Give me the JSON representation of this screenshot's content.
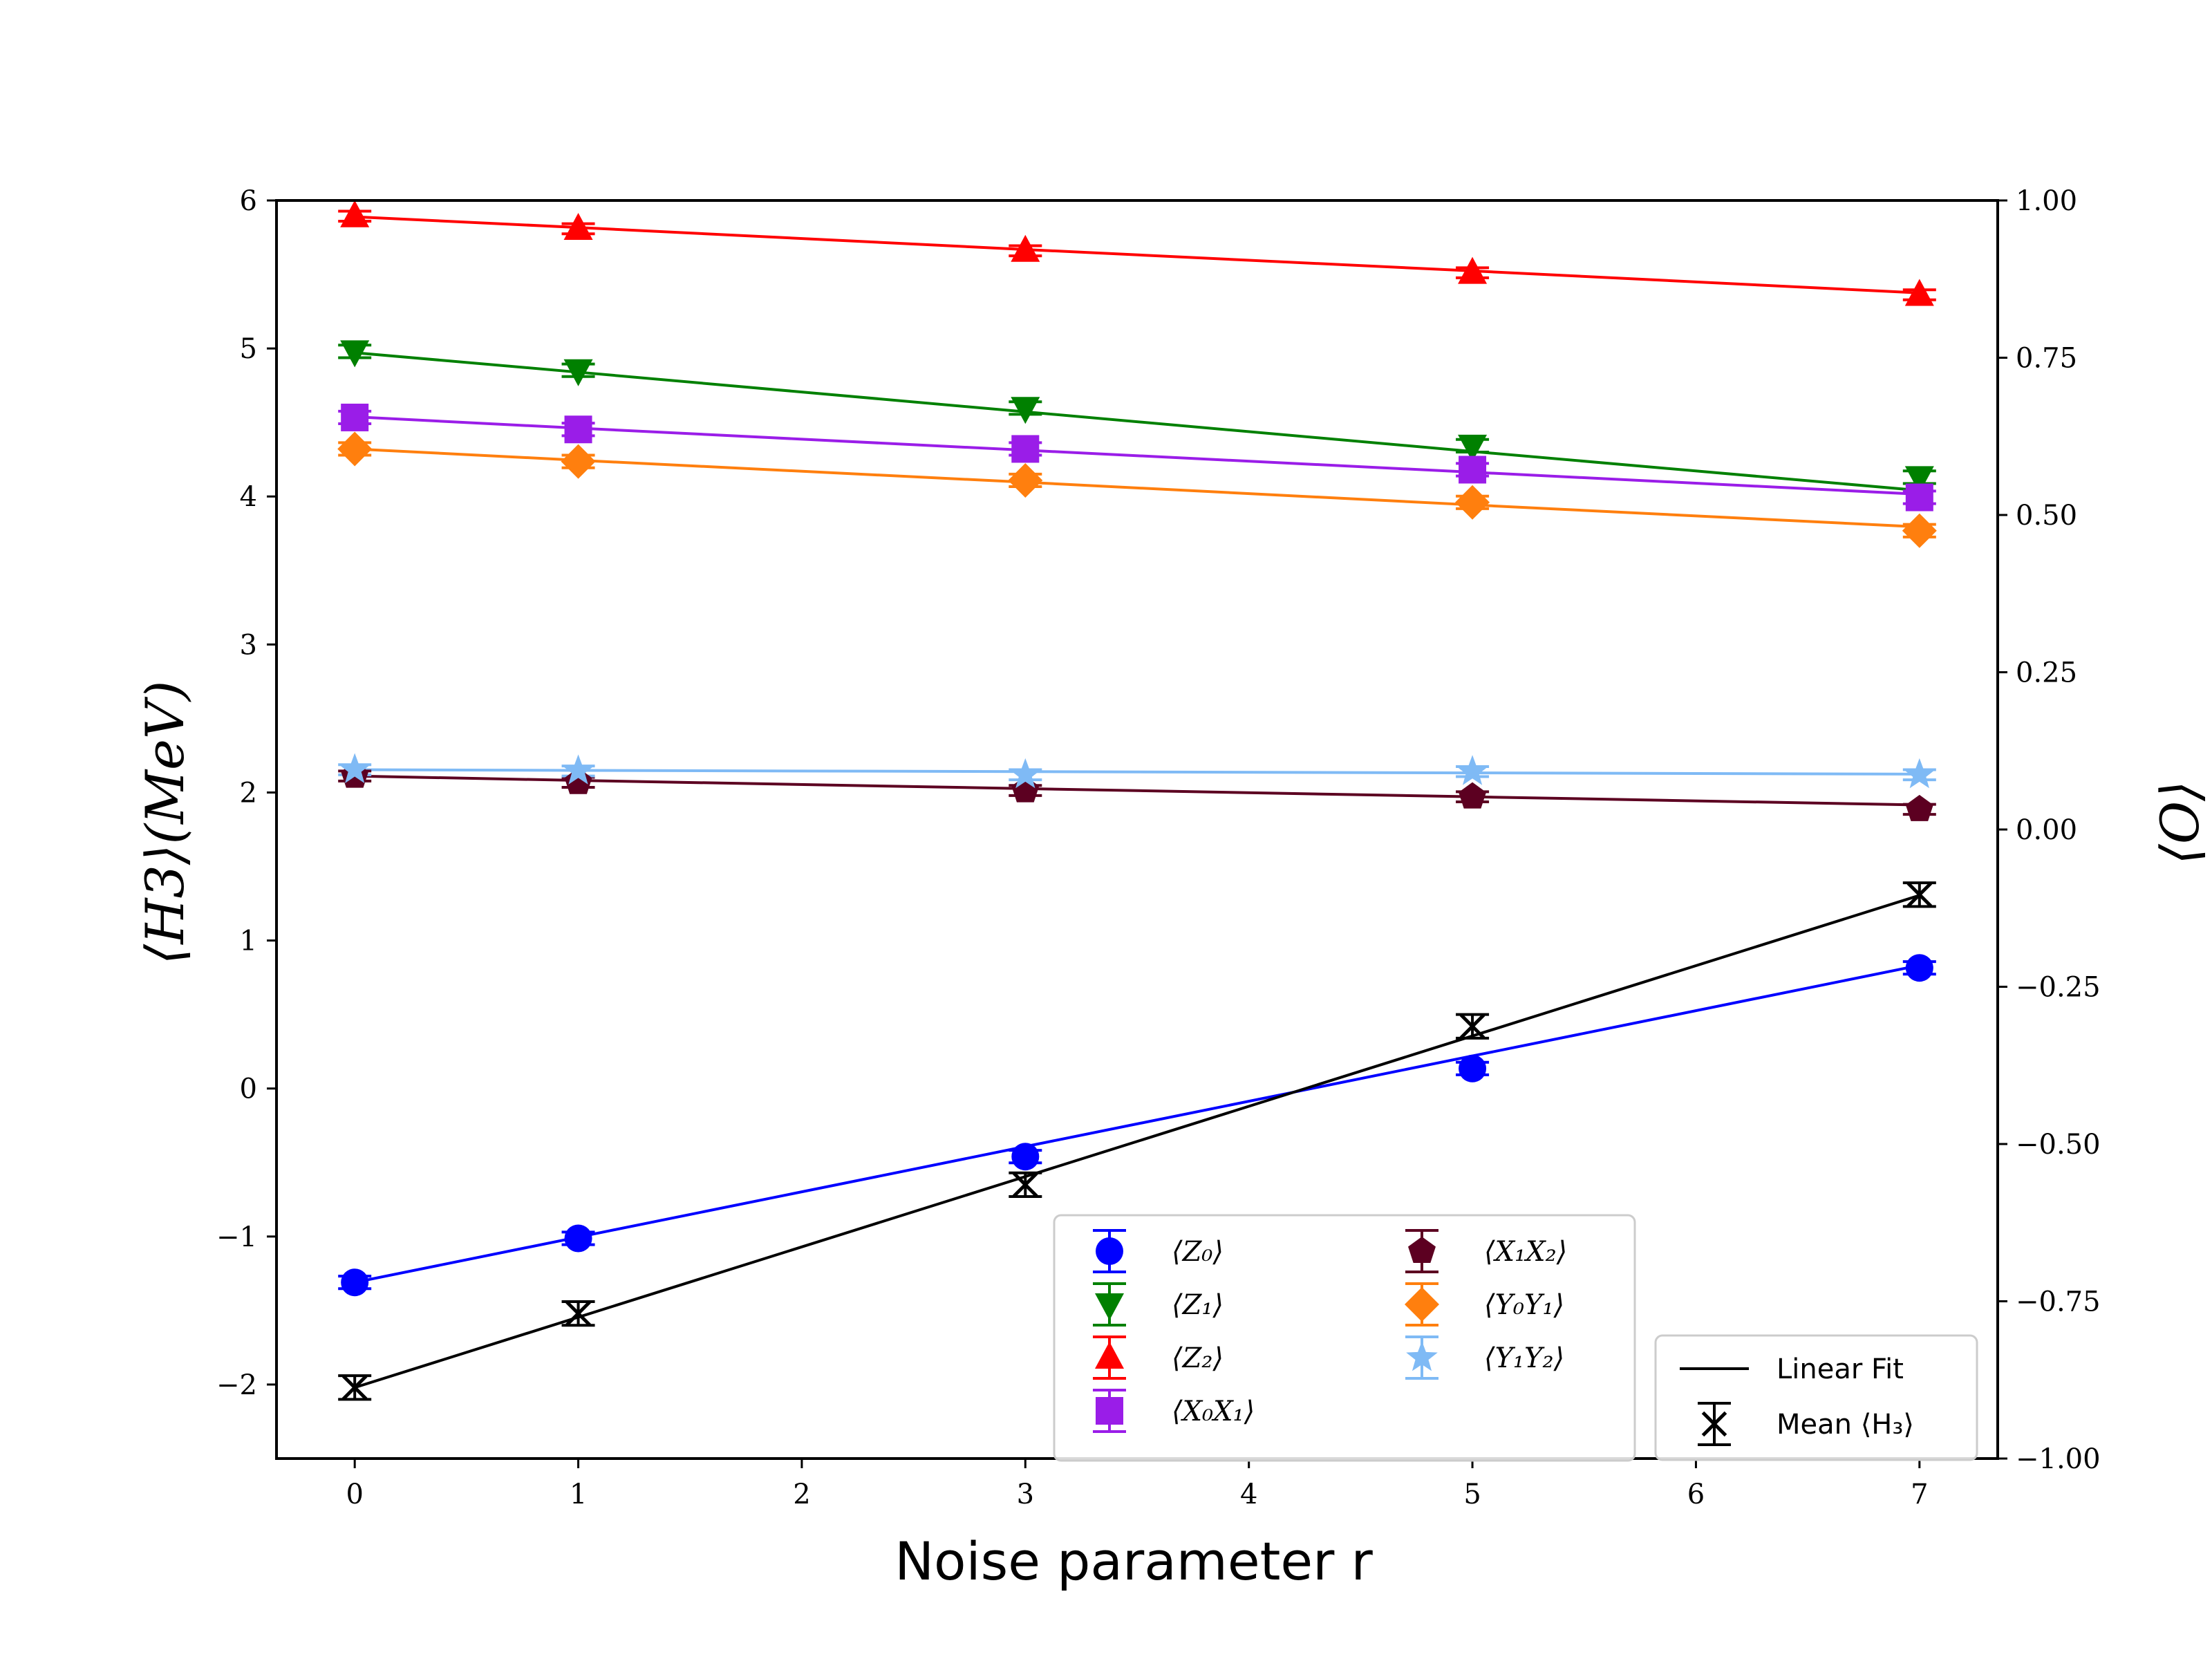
{
  "chart_data": {
    "type": "scatter",
    "x": [
      0,
      1,
      3,
      5,
      7
    ],
    "xlabel": "Noise parameter r",
    "ylabel_left": "⟨H3⟩(MeV)",
    "ylabel_right": "⟨O⟩",
    "xlim": [
      -0.35,
      7.35
    ],
    "ylim_left": [
      -2.5,
      6
    ],
    "ylim_right": [
      -1.0,
      1.0
    ],
    "xticks": [
      "0",
      "1",
      "2",
      "3",
      "4",
      "5",
      "6",
      "7"
    ],
    "yticks_left": [
      "−2",
      "−1",
      "0",
      "1",
      "2",
      "3",
      "4",
      "5",
      "6"
    ],
    "yticks_right": [
      "−1.00",
      "−0.75",
      "−0.50",
      "−0.25",
      "0.00",
      "0.25",
      "0.50",
      "0.75",
      "1.00"
    ],
    "series_right": [
      {
        "name": "⟨Z0⟩",
        "label": "⟨Z₀⟩",
        "color": "#0000ff",
        "marker": "circle",
        "values": [
          -0.72,
          -0.65,
          -0.52,
          -0.38,
          -0.22
        ],
        "fit": [
          -0.72,
          -0.648,
          -0.504,
          -0.36,
          -0.216
        ],
        "err": 0.01
      },
      {
        "name": "⟨Z1⟩",
        "label": "⟨Z₁⟩",
        "color": "#008000",
        "marker": "triangle-down",
        "values": [
          0.76,
          0.73,
          0.67,
          0.61,
          0.56
        ],
        "fit": [
          0.758,
          0.727,
          0.664,
          0.601,
          0.539
        ],
        "err": 0.01
      },
      {
        "name": "⟨Z2⟩",
        "label": "⟨Z₂⟩",
        "color": "#ff0000",
        "marker": "triangle-up",
        "values": [
          0.975,
          0.955,
          0.92,
          0.885,
          0.85
        ],
        "fit": [
          0.974,
          0.957,
          0.922,
          0.888,
          0.853
        ],
        "err": 0.008
      },
      {
        "name": "⟨X0X1⟩",
        "label": "⟨X₀X₁⟩",
        "color": "#9a1de8",
        "marker": "square",
        "values": [
          0.655,
          0.636,
          0.605,
          0.572,
          0.528
        ],
        "fit": [
          0.656,
          0.638,
          0.603,
          0.568,
          0.533
        ],
        "err": 0.01
      },
      {
        "name": "⟨X1X2⟩",
        "label": "⟨X₁X₂⟩",
        "color": "#5c0021",
        "marker": "pentagon",
        "values": [
          0.085,
          0.075,
          0.062,
          0.052,
          0.032
        ],
        "fit": [
          0.085,
          0.078,
          0.065,
          0.052,
          0.039
        ],
        "err": 0.008
      },
      {
        "name": "⟨Y0Y1⟩",
        "label": "⟨Y₀Y₁⟩",
        "color": "#ff7f0e",
        "marker": "diamond",
        "values": [
          0.605,
          0.585,
          0.555,
          0.52,
          0.475
        ],
        "fit": [
          0.605,
          0.587,
          0.552,
          0.516,
          0.481
        ],
        "err": 0.01
      },
      {
        "name": "⟨Y1Y2⟩",
        "label": "⟨Y₁Y₂⟩",
        "color": "#7fbaf5",
        "marker": "star",
        "values": [
          0.095,
          0.093,
          0.087,
          0.092,
          0.087
        ],
        "fit": [
          0.095,
          0.094,
          0.092,
          0.09,
          0.088
        ],
        "err": 0.008
      }
    ],
    "series_left": [
      {
        "name": "Mean ⟨H3⟩",
        "label": "Mean ⟨H₃⟩",
        "color": "#000000",
        "marker": "x",
        "values": [
          -2.02,
          -1.52,
          -0.65,
          0.42,
          1.31
        ],
        "fit": [
          -2.02,
          -1.545,
          -0.595,
          0.355,
          1.305
        ],
        "err": 0.08
      }
    ],
    "legend": {
      "main_placement": "lower-center",
      "main_items": [
        "⟨Z₀⟩",
        "⟨Z₁⟩",
        "⟨Z₂⟩",
        "⟨X₀X₁⟩",
        "⟨X₁X₂⟩",
        "⟨Y₀Y₁⟩",
        "⟨Y₁Y₂⟩"
      ],
      "fit_placement": "lower-right",
      "fit_items": [
        "Linear Fit",
        "Mean ⟨H₃⟩"
      ]
    }
  }
}
